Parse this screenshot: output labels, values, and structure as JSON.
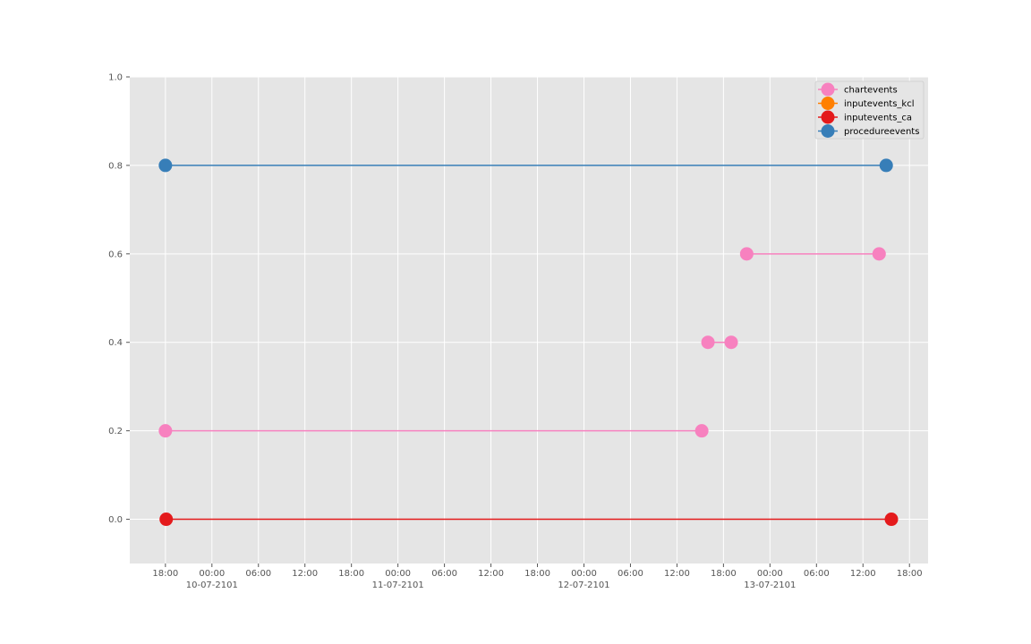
{
  "chart_data": {
    "type": "line",
    "title": "",
    "xlabel": "",
    "ylabel": "",
    "x_origin": "2101-07-09T18:00",
    "xlim": [
      "2101-07-09T13:24",
      "2101-07-13T20:24"
    ],
    "ylim": [
      -0.1,
      1.0
    ],
    "yticks": [
      0.0,
      0.2,
      0.4,
      0.6,
      0.8,
      1.0
    ],
    "ytick_labels": [
      "0.0",
      "0.2",
      "0.4",
      "0.6",
      "0.8",
      "1.0"
    ],
    "xtick_labels": [
      "18:00",
      "00:00",
      "06:00",
      "12:00",
      "18:00",
      "00:00",
      "06:00",
      "12:00",
      "18:00",
      "00:00",
      "06:00",
      "12:00",
      "18:00",
      "00:00",
      "06:00",
      "12:00",
      "18:00"
    ],
    "xdate_labels": [
      {
        "tick_index": 1,
        "label": "10-07-2101"
      },
      {
        "tick_index": 5,
        "label": "11-07-2101"
      },
      {
        "tick_index": 9,
        "label": "12-07-2101"
      },
      {
        "tick_index": 13,
        "label": "13-07-2101"
      }
    ],
    "grid": true,
    "legend_position": "top-right",
    "legend": [
      {
        "name": "chartevents",
        "color": "#f781bf"
      },
      {
        "name": "inputevents_kcl",
        "color": "#ff7f00"
      },
      {
        "name": "inputevents_ca",
        "color": "#e41a1c"
      },
      {
        "name": "procedureevents",
        "color": "#377eb8"
      }
    ],
    "segments": [
      {
        "series": "procedureevents",
        "color": "#377eb8",
        "y": 0.8,
        "start": "2101-07-09T18:00",
        "end": "2101-07-13T15:00"
      },
      {
        "series": "chartevents",
        "color": "#f781bf",
        "y": 0.6,
        "start": "2101-07-12T21:00",
        "end": "2101-07-13T14:05"
      },
      {
        "series": "chartevents",
        "color": "#f781bf",
        "y": 0.4,
        "start": "2101-07-12T16:00",
        "end": "2101-07-12T19:00"
      },
      {
        "series": "chartevents",
        "color": "#f781bf",
        "y": 0.2,
        "start": "2101-07-09T18:00",
        "end": "2101-07-12T15:12"
      },
      {
        "series": "inputevents_ca",
        "color": "#e41a1c",
        "y": 0.0,
        "start": "2101-07-09T18:06",
        "end": "2101-07-13T15:40"
      }
    ]
  }
}
